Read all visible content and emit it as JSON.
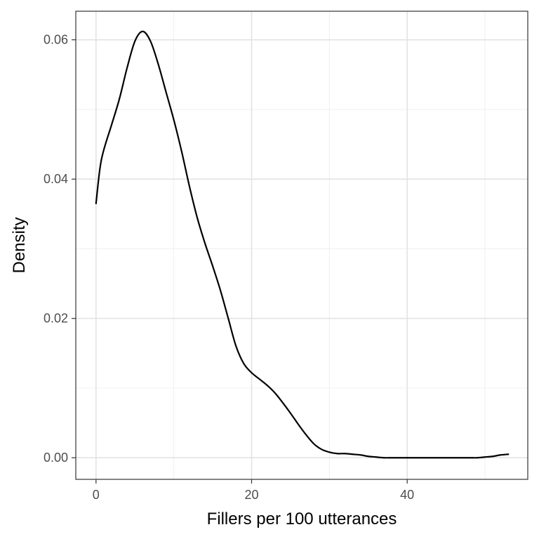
{
  "chart_data": {
    "type": "line",
    "title": "",
    "xlabel": "Fillers per 100 utterances",
    "ylabel": "Density",
    "xlim": [
      -2.6,
      55.5
    ],
    "ylim": [
      -0.0031,
      0.0641
    ],
    "x_ticks": [
      0,
      20,
      40
    ],
    "x_tick_labels": [
      "0",
      "20",
      "40"
    ],
    "y_ticks": [
      0,
      0.02,
      0.04,
      0.06
    ],
    "y_tick_labels": [
      "0.00",
      "0.02",
      "0.04",
      "0.06"
    ],
    "grid": true,
    "series": [
      {
        "x": [
          0,
          0.5,
          1,
          2,
          3,
          4,
          5,
          6,
          7,
          8,
          9,
          10,
          11,
          12,
          13,
          14,
          15,
          16,
          17,
          18,
          19,
          20,
          21,
          22,
          23,
          24,
          25,
          26,
          27,
          28,
          29,
          30,
          31,
          32,
          33,
          34,
          35,
          36,
          37,
          38,
          39,
          40,
          42,
          44,
          46,
          48,
          49,
          50,
          51,
          52,
          53
        ],
        "y": [
          0.0365,
          0.0415,
          0.0442,
          0.0478,
          0.0515,
          0.056,
          0.0598,
          0.0612,
          0.0598,
          0.0565,
          0.0525,
          0.0485,
          0.044,
          0.039,
          0.0345,
          0.0308,
          0.0275,
          0.024,
          0.02,
          0.016,
          0.0135,
          0.0122,
          0.0113,
          0.0104,
          0.0093,
          0.0079,
          0.0064,
          0.0048,
          0.0033,
          0.002,
          0.0012,
          0.0008,
          0.0006,
          0.0006,
          0.0005,
          0.0004,
          0.0002,
          0.0001,
          0.0,
          0.0,
          0.0,
          0.0,
          0.0,
          0.0,
          0.0,
          0.0,
          0.0,
          0.0001,
          0.0002,
          0.0004,
          0.0005
        ],
        "color": "#000000"
      }
    ]
  }
}
